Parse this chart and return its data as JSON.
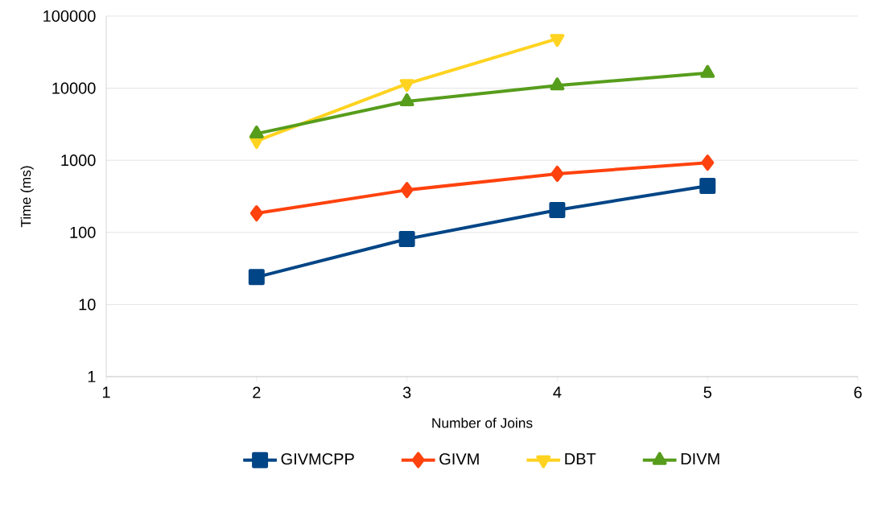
{
  "chart_data": {
    "type": "line",
    "xlabel": "Number of Joins",
    "ylabel": "Time (ms)",
    "x": [
      2,
      3,
      4,
      5
    ],
    "series": [
      {
        "name": "GIVMCPP",
        "color": "#004586",
        "marker": "square",
        "values": [
          24,
          81,
          204,
          442
        ]
      },
      {
        "name": "GIVM",
        "color": "#ff420e",
        "marker": "diamond",
        "values": [
          184,
          387,
          650,
          927
        ]
      },
      {
        "name": "DBT",
        "color": "#ffd320",
        "marker": "triangle-down",
        "values": [
          1860,
          11500,
          48500,
          null
        ]
      },
      {
        "name": "DIVM",
        "color": "#579d1c",
        "marker": "triangle",
        "values": [
          2340,
          6570,
          10900,
          16200
        ]
      }
    ],
    "xlim": [
      1,
      6
    ],
    "xticks": [
      1,
      2,
      3,
      4,
      5,
      6
    ],
    "ylim": [
      1,
      100000
    ],
    "yticks": [
      1,
      10,
      100,
      1000,
      10000,
      100000
    ],
    "log": "y",
    "grid": "y",
    "legend": "bottom",
    "line_style": "solid"
  }
}
